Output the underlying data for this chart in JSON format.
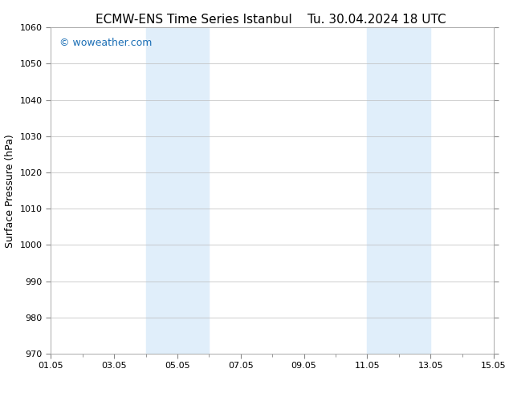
{
  "title_left": "ECMW-ENS Time Series Istanbul",
  "title_right": "Tu. 30.04.2024 18 UTC",
  "ylabel": "Surface Pressure (hPa)",
  "ylim": [
    970,
    1060
  ],
  "yticks": [
    970,
    980,
    990,
    1000,
    1010,
    1020,
    1030,
    1040,
    1050,
    1060
  ],
  "xlim_start": 0,
  "xlim_end": 14,
  "xtick_positions": [
    0,
    2,
    4,
    6,
    8,
    10,
    12,
    14
  ],
  "xtick_labels": [
    "01.05",
    "03.05",
    "05.05",
    "07.05",
    "09.05",
    "11.05",
    "13.05",
    "15.05"
  ],
  "shaded_bands": [
    {
      "x_start": 3.0,
      "x_end": 5.0
    },
    {
      "x_start": 10.0,
      "x_end": 12.0
    }
  ],
  "band_color": "#e0eefa",
  "watermark_text": "© woweather.com",
  "watermark_color": "#1a6eb5",
  "background_color": "#ffffff",
  "plot_bg_color": "#ffffff",
  "grid_color": "#bbbbbb",
  "title_fontsize": 11,
  "axis_label_fontsize": 9,
  "tick_fontsize": 8,
  "watermark_fontsize": 9
}
